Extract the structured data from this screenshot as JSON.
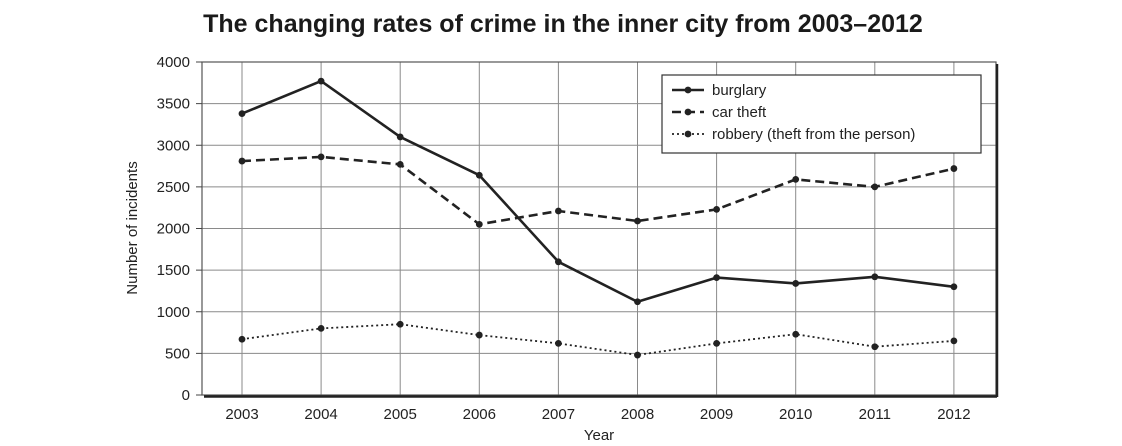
{
  "chart_data": {
    "type": "line",
    "title": "The changing rates of crime in the inner city from 2003–2012",
    "xlabel": "Year",
    "ylabel": "Number of incidents",
    "categories": [
      "2003",
      "2004",
      "2005",
      "2006",
      "2007",
      "2008",
      "2009",
      "2010",
      "2011",
      "2012"
    ],
    "yticks": [
      "0",
      "500",
      "1000",
      "1500",
      "2000",
      "2500",
      "3000",
      "3500",
      "4000"
    ],
    "ylim": [
      0,
      4000
    ],
    "grid": true,
    "legend_position": "top-right",
    "series": [
      {
        "name": "burglary",
        "style": "solid",
        "values": [
          3380,
          3770,
          3100,
          2640,
          1600,
          1120,
          1410,
          1340,
          1420,
          1300
        ]
      },
      {
        "name": "car theft",
        "style": "dashed",
        "values": [
          2810,
          2860,
          2770,
          2050,
          2210,
          2090,
          2230,
          2590,
          2500,
          2720
        ]
      },
      {
        "name": "robbery (theft from the person)",
        "style": "dotted",
        "values": [
          670,
          800,
          850,
          720,
          620,
          480,
          620,
          730,
          580,
          650
        ]
      }
    ],
    "line_color": "#222222"
  }
}
